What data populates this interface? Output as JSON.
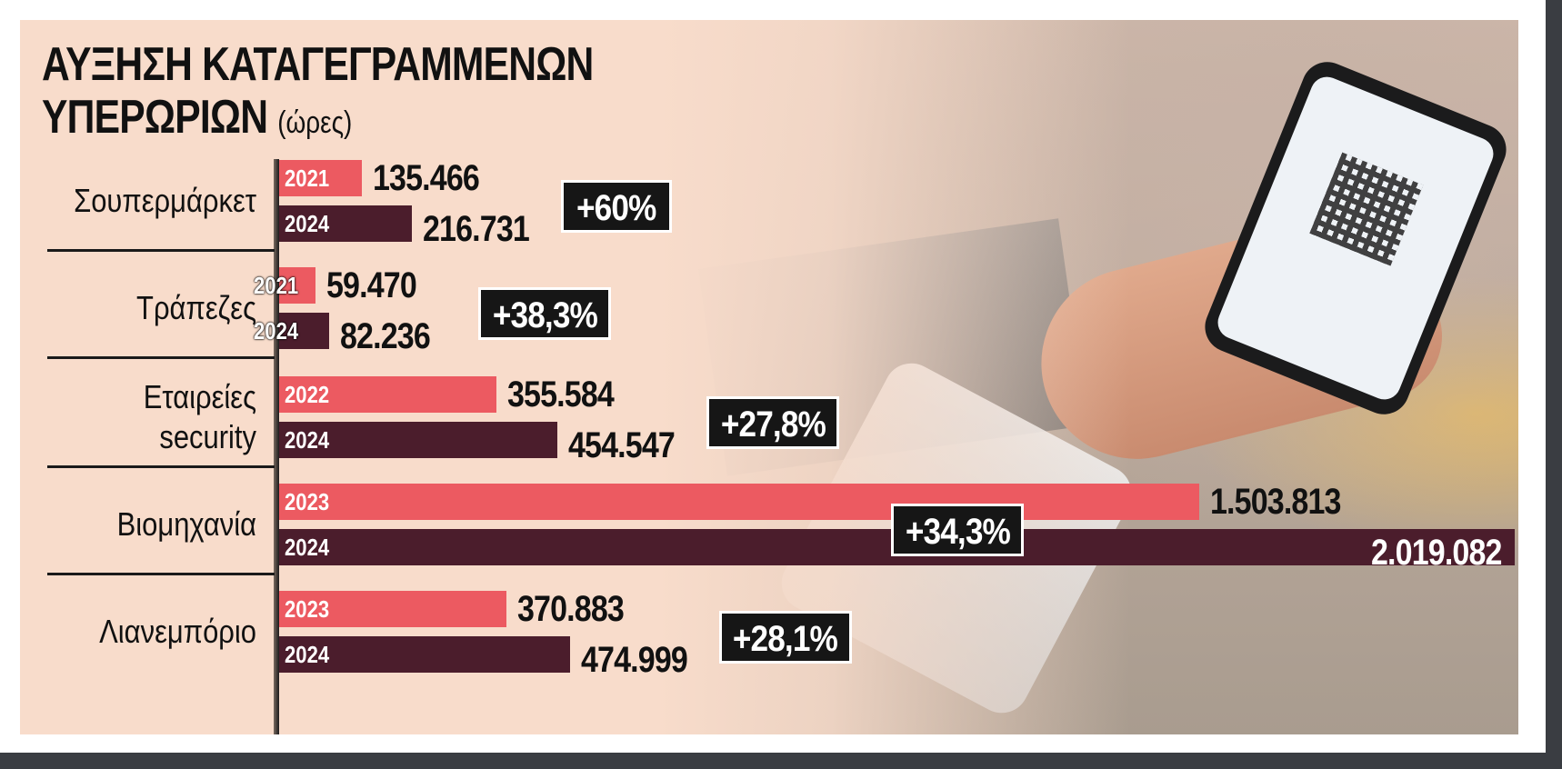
{
  "chart_data": {
    "type": "bar",
    "title": "ΑΥΞΗΣΗ ΚΑΤΑΓΕΓΡΑΜΜΕΝΩΝ ΥΠΕΡΩΡΙΩΝ",
    "title_line1": "ΑΥΞΗΣΗ ΚΑΤΑΓΕΓΡΑΜΜΕΝΩΝ",
    "title_line2": "ΥΠΕΡΩΡΙΩΝ",
    "unit": "(ώρες)",
    "orientation": "horizontal",
    "xlim": [
      0,
      2019082
    ],
    "grid": false,
    "colors": {
      "earlier_year": "#ec5a61",
      "year_2024": "#4b1d2c",
      "badge": "#161616"
    },
    "groups": [
      {
        "category": "Σουπερμάρκετ",
        "category_lines": [
          "Σουπερμάρκετ"
        ],
        "bars": [
          {
            "year": "2021",
            "value": 135466,
            "label": "135.466"
          },
          {
            "year": "2024",
            "value": 216731,
            "label": "216.731"
          }
        ],
        "change": "+60%"
      },
      {
        "category": "Τράπεζες",
        "category_lines": [
          "Τράπεζες"
        ],
        "bars": [
          {
            "year": "2021",
            "value": 59470,
            "label": "59.470"
          },
          {
            "year": "2024",
            "value": 82236,
            "label": "82.236"
          }
        ],
        "change": "+38,3%"
      },
      {
        "category": "Εταιρείες security",
        "category_lines": [
          "Εταιρείες",
          "security"
        ],
        "bars": [
          {
            "year": "2022",
            "value": 355584,
            "label": "355.584"
          },
          {
            "year": "2024",
            "value": 454547,
            "label": "454.547"
          }
        ],
        "change": "+27,8%"
      },
      {
        "category": "Βιομηχανία",
        "category_lines": [
          "Βιομηχανία"
        ],
        "bars": [
          {
            "year": "2023",
            "value": 1503813,
            "label": "1.503.813"
          },
          {
            "year": "2024",
            "value": 2019082,
            "label": "2.019.082"
          }
        ],
        "change": "+34,3%"
      },
      {
        "category": "Λιανεμπόριο",
        "category_lines": [
          "Λιανεμπόριο"
        ],
        "bars": [
          {
            "year": "2023",
            "value": 370883,
            "label": "370.883"
          },
          {
            "year": "2024",
            "value": 474999,
            "label": "474.999"
          }
        ],
        "change": "+28,1%"
      }
    ]
  },
  "background_image": "hand holding smartphone showing digital work card QR code, card terminal in foreground, supermarket shelves"
}
